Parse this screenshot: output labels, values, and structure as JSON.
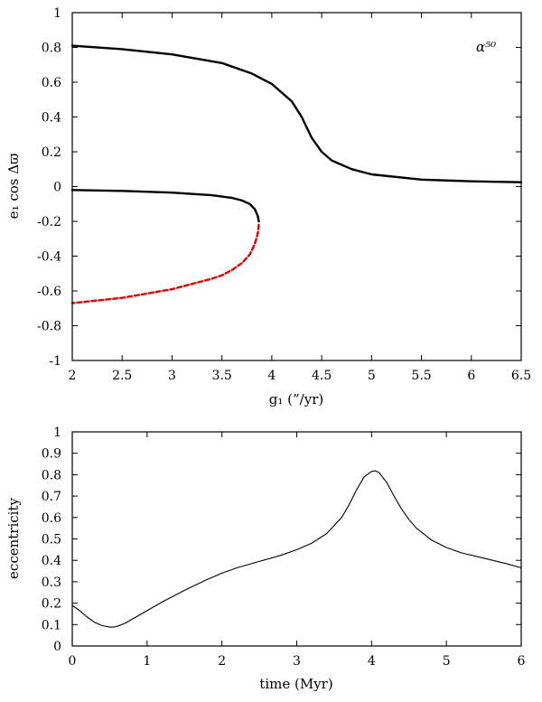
{
  "colors": {
    "axis": "#000000",
    "stable_branch": "#000000",
    "unstable_branch": "#e00000",
    "eccentricity_curve": "#000000"
  },
  "chart_data": [
    {
      "type": "line",
      "xlabel": "g₁ (”/yr)",
      "ylabel": "e₁ cos Δϖ",
      "annotation": "α⁵⁰",
      "xlim": [
        2,
        6.5
      ],
      "ylim": [
        -1,
        1
      ],
      "xticks": [
        "2",
        "2.5",
        "3",
        "3.5",
        "4",
        "4.5",
        "5",
        "5.5",
        "6",
        "6.5"
      ],
      "xtick_values": [
        2,
        2.5,
        3,
        3.5,
        4,
        4.5,
        5,
        5.5,
        6,
        6.5
      ],
      "yticks": [
        "1",
        "0.8",
        "0.6",
        "0.4",
        "0.2",
        "0",
        "-0.2",
        "-0.4",
        "-0.6",
        "-0.8",
        "-1"
      ],
      "ytick_values": [
        1,
        0.8,
        0.6,
        0.4,
        0.2,
        0,
        -0.2,
        -0.4,
        -0.6,
        -0.8,
        -1
      ],
      "grid": false,
      "series": [
        {
          "style": "solid",
          "color_key": "stable_branch",
          "x": [
            2.0,
            2.5,
            3.0,
            3.5,
            3.8,
            4.0,
            4.2,
            4.3,
            4.4,
            4.5,
            4.6,
            4.8,
            5.0,
            5.5,
            6.0,
            6.5
          ],
          "y": [
            0.81,
            0.79,
            0.76,
            0.71,
            0.65,
            0.59,
            0.49,
            0.4,
            0.28,
            0.2,
            0.15,
            0.1,
            0.07,
            0.04,
            0.03,
            0.025
          ]
        },
        {
          "style": "solid",
          "color_key": "stable_branch",
          "x": [
            2.0,
            2.5,
            3.0,
            3.4,
            3.6,
            3.7,
            3.78,
            3.83,
            3.86,
            3.87
          ],
          "y": [
            -0.02,
            -0.025,
            -0.035,
            -0.05,
            -0.065,
            -0.08,
            -0.1,
            -0.13,
            -0.17,
            -0.2
          ]
        },
        {
          "style": "dashed",
          "color_key": "unstable_branch",
          "x": [
            3.87,
            3.86,
            3.83,
            3.78,
            3.7,
            3.6,
            3.5,
            3.4,
            3.2,
            3.0,
            2.5,
            2.0
          ],
          "y": [
            -0.22,
            -0.27,
            -0.33,
            -0.39,
            -0.44,
            -0.48,
            -0.51,
            -0.53,
            -0.56,
            -0.59,
            -0.64,
            -0.67
          ]
        }
      ]
    },
    {
      "type": "line",
      "xlabel": "time (Myr)",
      "ylabel": "eccentricity",
      "xlim": [
        0,
        6
      ],
      "ylim": [
        0,
        1
      ],
      "xticks": [
        "0",
        "1",
        "2",
        "3",
        "4",
        "5",
        "6"
      ],
      "xtick_values": [
        0,
        1,
        2,
        3,
        4,
        5,
        6
      ],
      "yticks": [
        "1",
        "0.9",
        "0.8",
        "0.7",
        "0.6",
        "0.5",
        "0.4",
        "0.3",
        "0.2",
        "0.1",
        "0"
      ],
      "ytick_values": [
        1,
        0.9,
        0.8,
        0.7,
        0.6,
        0.5,
        0.4,
        0.3,
        0.2,
        0.1,
        0
      ],
      "grid": false,
      "series": [
        {
          "style": "solid",
          "color_key": "eccentricity_curve",
          "x": [
            0.0,
            0.1,
            0.2,
            0.3,
            0.4,
            0.5,
            0.55,
            0.6,
            0.7,
            0.8,
            0.9,
            1.0,
            1.2,
            1.5,
            1.8,
            2.0,
            2.2,
            2.5,
            2.8,
            3.0,
            3.2,
            3.4,
            3.6,
            3.7,
            3.8,
            3.9,
            4.0,
            4.05,
            4.1,
            4.2,
            4.3,
            4.4,
            4.5,
            4.6,
            4.8,
            5.0,
            5.2,
            5.5,
            5.8,
            6.0
          ],
          "y": [
            0.19,
            0.165,
            0.135,
            0.11,
            0.095,
            0.088,
            0.088,
            0.092,
            0.105,
            0.125,
            0.145,
            0.165,
            0.205,
            0.26,
            0.31,
            0.34,
            0.365,
            0.395,
            0.425,
            0.45,
            0.48,
            0.525,
            0.6,
            0.66,
            0.73,
            0.79,
            0.815,
            0.818,
            0.81,
            0.765,
            0.7,
            0.64,
            0.59,
            0.55,
            0.495,
            0.46,
            0.435,
            0.41,
            0.385,
            0.365
          ]
        }
      ]
    }
  ]
}
